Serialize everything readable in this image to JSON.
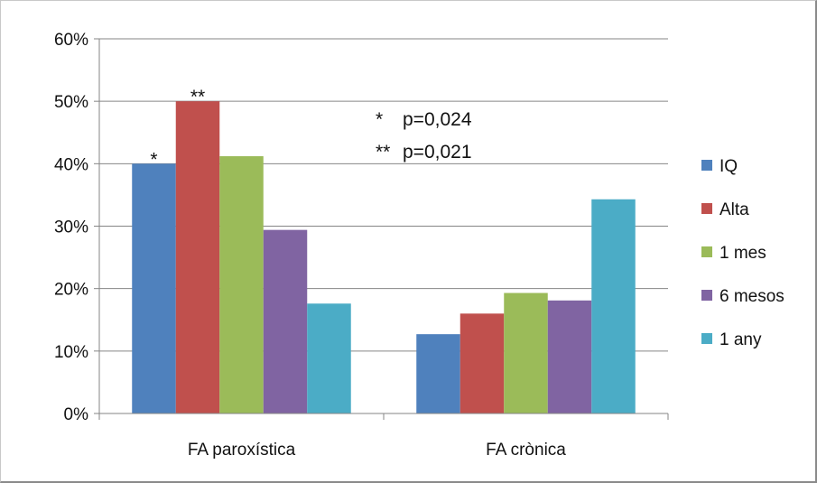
{
  "chart_data": {
    "type": "bar",
    "categories": [
      "FA paroxística",
      "FA crònica"
    ],
    "series": [
      {
        "name": "IQ",
        "color": "#4f81bd",
        "values": [
          40.0,
          12.7
        ]
      },
      {
        "name": "Alta",
        "color": "#c0504d",
        "values": [
          50.0,
          16.0
        ]
      },
      {
        "name": "1 mes",
        "color": "#9bbb59",
        "values": [
          41.2,
          19.3
        ]
      },
      {
        "name": "6 mesos",
        "color": "#8064a2",
        "values": [
          29.4,
          18.1
        ]
      },
      {
        "name": "1 any",
        "color": "#4bacc6",
        "values": [
          17.6,
          34.3
        ]
      }
    ],
    "ylim": [
      0,
      60
    ],
    "yticks": [
      "0%",
      "10%",
      "20%",
      "30%",
      "40%",
      "50%",
      "60%"
    ],
    "grid": true,
    "legend": "right",
    "bar_markers": [
      {
        "category": 0,
        "series": 0,
        "text": "*"
      },
      {
        "category": 0,
        "series": 1,
        "text": "**"
      }
    ],
    "annotations": [
      {
        "marker": "*",
        "text": "p=0,024"
      },
      {
        "marker": "**",
        "text": "p=0,021"
      }
    ]
  }
}
